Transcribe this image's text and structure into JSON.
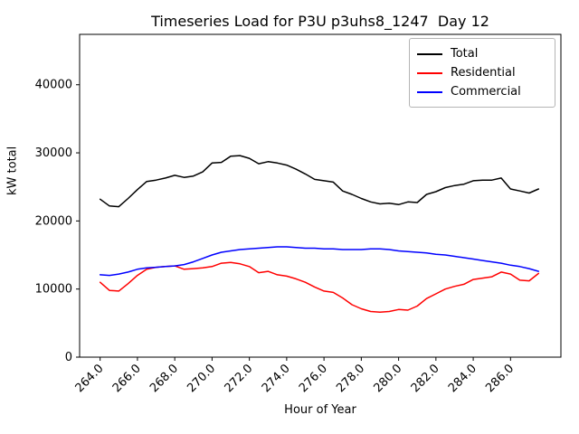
{
  "chart_data": {
    "type": "line",
    "title": "Timeseries Load for P3U p3uhs8_1247  Day 12",
    "xlabel": "Hour of Year",
    "ylabel": "kW total",
    "xlim": [
      262.9,
      288.7
    ],
    "ylim": [
      0,
      47400
    ],
    "xticks": [
      264.0,
      266.0,
      268.0,
      270.0,
      272.0,
      274.0,
      276.0,
      278.0,
      280.0,
      282.0,
      284.0,
      286.0
    ],
    "yticks": [
      0,
      10000,
      20000,
      30000,
      40000
    ],
    "grid": false,
    "legend_position": "upper right",
    "x": [
      264.0,
      264.5,
      265.0,
      265.5,
      266.0,
      266.5,
      267.0,
      267.5,
      268.0,
      268.5,
      269.0,
      269.5,
      270.0,
      270.5,
      271.0,
      271.5,
      272.0,
      272.5,
      273.0,
      273.5,
      274.0,
      274.5,
      275.0,
      275.5,
      276.0,
      276.5,
      277.0,
      277.5,
      278.0,
      278.5,
      279.0,
      279.5,
      280.0,
      280.5,
      281.0,
      281.5,
      282.0,
      282.5,
      283.0,
      283.5,
      284.0,
      284.5,
      285.0,
      285.5,
      286.0,
      286.5,
      287.0,
      287.5
    ],
    "series": [
      {
        "name": "Total",
        "color": "#000000",
        "values": [
          23200,
          22200,
          22100,
          23300,
          24600,
          25800,
          26000,
          26300,
          26700,
          26400,
          26600,
          27200,
          28500,
          28600,
          29500,
          29600,
          29200,
          28400,
          28700,
          28500,
          28200,
          27600,
          26900,
          26100,
          25900,
          25700,
          24400,
          23900,
          23300,
          22800,
          22500,
          22600,
          22400,
          22800,
          22700,
          23900,
          24300,
          24900,
          25200,
          25400,
          25900,
          26000,
          26000,
          26300,
          24700,
          24400,
          24100,
          24700
        ]
      },
      {
        "name": "Residential",
        "color": "#ff0000",
        "values": [
          11000,
          9800,
          9700,
          10800,
          12000,
          12900,
          13200,
          13300,
          13400,
          12900,
          13000,
          13100,
          13300,
          13800,
          13900,
          13700,
          13300,
          12400,
          12600,
          12100,
          11900,
          11500,
          11000,
          10300,
          9700,
          9500,
          8700,
          7700,
          7100,
          6700,
          6600,
          6700,
          7000,
          6900,
          7500,
          8600,
          9300,
          10000,
          10400,
          10700,
          11400,
          11600,
          11800,
          12500,
          12200,
          11300,
          11200,
          12300
        ]
      },
      {
        "name": "Commercial",
        "color": "#0000ff",
        "values": [
          12100,
          12000,
          12200,
          12500,
          12900,
          13100,
          13200,
          13300,
          13400,
          13600,
          14000,
          14500,
          15000,
          15400,
          15600,
          15800,
          15900,
          16000,
          16100,
          16200,
          16200,
          16100,
          16000,
          16000,
          15900,
          15900,
          15800,
          15800,
          15800,
          15900,
          15900,
          15800,
          15600,
          15500,
          15400,
          15300,
          15100,
          15000,
          14800,
          14600,
          14400,
          14200,
          14000,
          13800,
          13500,
          13300,
          13000,
          12600
        ]
      }
    ]
  }
}
